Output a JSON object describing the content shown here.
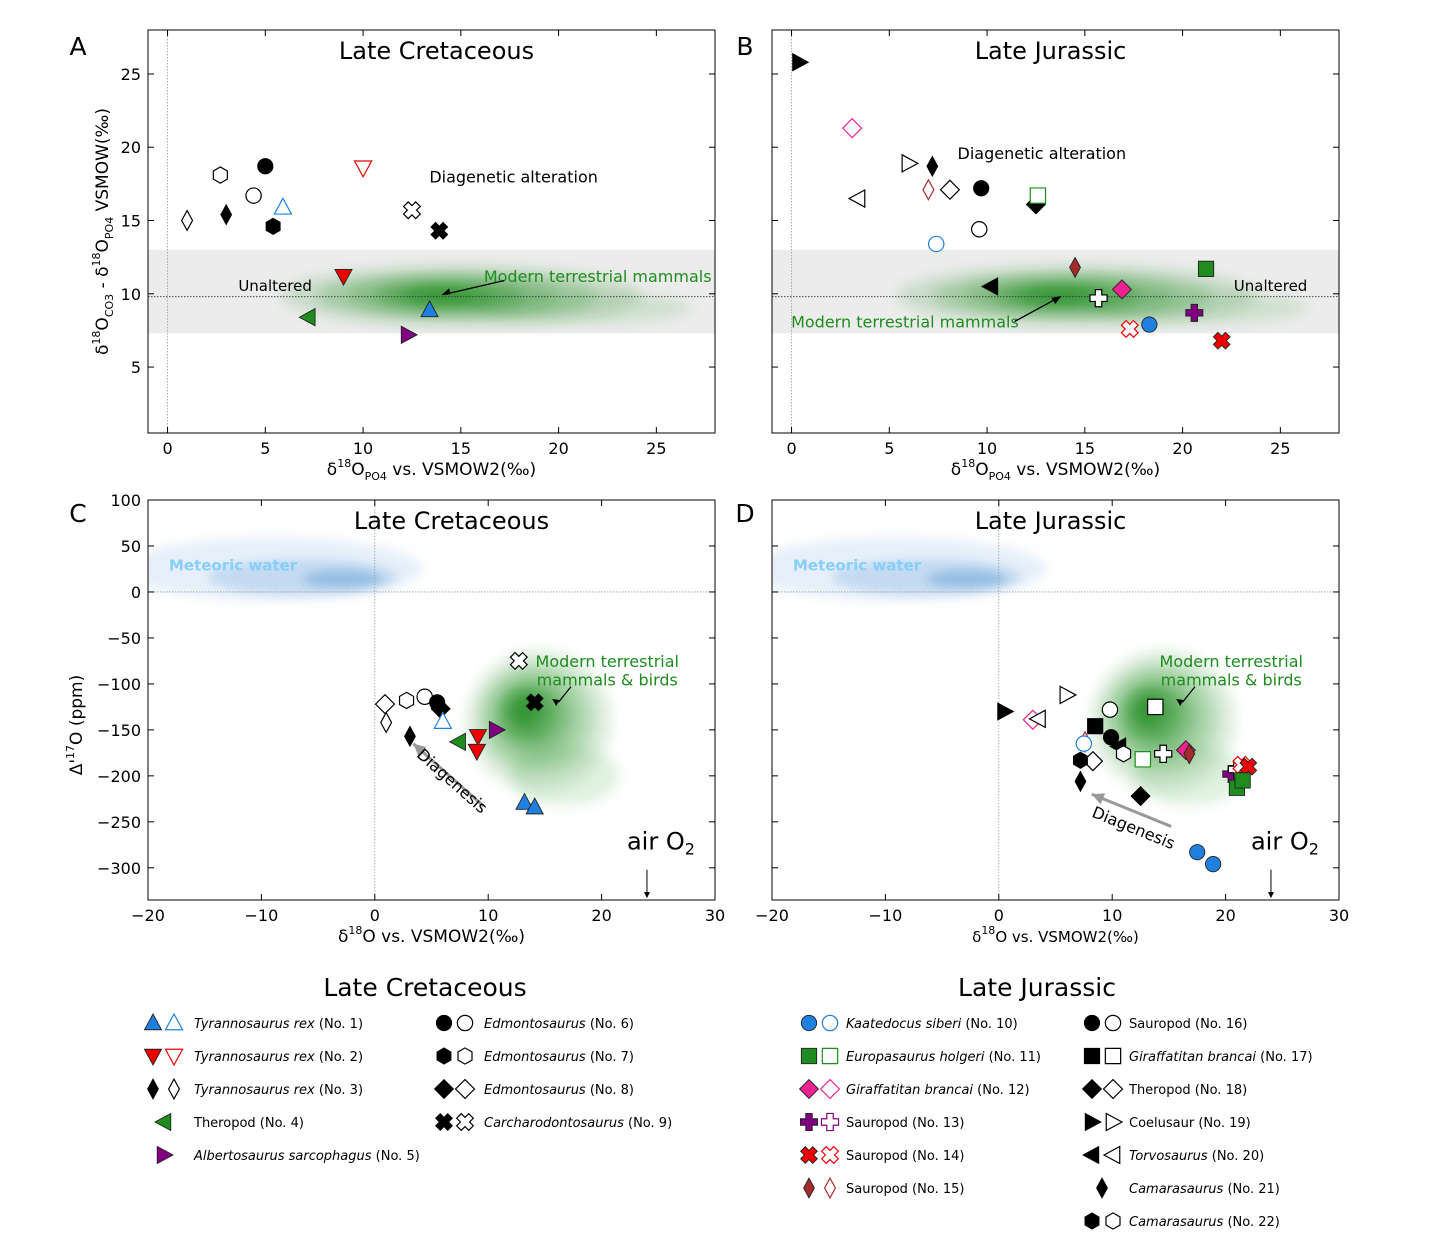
{
  "colors": {
    "green": "#1e8c1e",
    "blue": "#2080e0",
    "red": "#ee0000",
    "purple": "#800080",
    "darkred": "#a52a2a",
    "pink": "#ee2290",
    "black": "#000000",
    "meteoric": "#87cefa",
    "band": "#ececec"
  },
  "chart_data": [
    {
      "panel": "A",
      "type": "scatter",
      "title": "Late Cretaceous",
      "xlabel": {
        "pre": "δ",
        "sup": "18",
        "main": "O",
        "sub": "PO4",
        "post": " vs. VSMOW2(‰)"
      },
      "ylabel": {
        "a": "δ",
        "a_sup": "18",
        "b": "O",
        "b_sub": "CO3",
        "c": " - δ",
        "c_sup": "18",
        "d": "O",
        "d_sub": "PO4",
        "e": " VSMOW(‰)"
      },
      "xlim": [
        -1,
        28
      ],
      "ylim": [
        0.5,
        28
      ],
      "xticks": [
        0,
        5,
        10,
        15,
        20,
        25
      ],
      "yticks": [
        5,
        10,
        15,
        20,
        25
      ],
      "band": [
        7.3,
        13.0
      ],
      "hline": 9.8,
      "vline": 0,
      "texts": {
        "alteration": "Diagenetic alteration",
        "unaltered": "Unaltered",
        "modern": "Modern terrestrial mammals"
      },
      "points": [
        {
          "x": 5.0,
          "y": 18.7,
          "m": "circle",
          "c": "black",
          "f": true
        },
        {
          "x": 4.4,
          "y": 16.7,
          "m": "circle",
          "c": "black",
          "f": false
        },
        {
          "x": 2.7,
          "y": 18.1,
          "m": "hexagon",
          "c": "black",
          "f": false
        },
        {
          "x": 5.4,
          "y": 14.6,
          "m": "hexagon",
          "c": "black",
          "f": true
        },
        {
          "x": 1.0,
          "y": 15.0,
          "m": "thin_diamond",
          "c": "black",
          "f": false
        },
        {
          "x": 3.0,
          "y": 15.4,
          "m": "thin_diamond",
          "c": "black",
          "f": true
        },
        {
          "x": 5.9,
          "y": 15.9,
          "m": "tri_up",
          "c": "blue",
          "f": false
        },
        {
          "x": 10.0,
          "y": 18.6,
          "m": "tri_down",
          "c": "red",
          "f": false
        },
        {
          "x": 12.5,
          "y": 15.7,
          "m": "cross",
          "c": "black",
          "f": false
        },
        {
          "x": 13.9,
          "y": 14.3,
          "m": "cross",
          "c": "black",
          "f": true
        },
        {
          "x": 9.0,
          "y": 11.2,
          "m": "tri_down",
          "c": "red",
          "f": true
        },
        {
          "x": 7.2,
          "y": 8.4,
          "m": "tri_left",
          "c": "green",
          "f": true
        },
        {
          "x": 13.4,
          "y": 8.9,
          "m": "tri_up",
          "c": "blue",
          "f": true
        },
        {
          "x": 12.3,
          "y": 7.2,
          "m": "tri_right",
          "c": "purple",
          "f": true
        }
      ]
    },
    {
      "panel": "B",
      "type": "scatter",
      "title": "Late Jurassic",
      "xlabel": {
        "pre": "δ",
        "sup": "18",
        "main": "O",
        "sub": "PO4",
        "post": " vs. VSMOW2(‰)"
      },
      "xlim": [
        -1,
        28
      ],
      "ylim": [
        0.5,
        28
      ],
      "xticks": [
        0,
        5,
        10,
        15,
        20,
        25
      ],
      "yticks": [
        5,
        10,
        15,
        20,
        25
      ],
      "band": [
        7.3,
        13.0
      ],
      "hline": 9.8,
      "vline": 0,
      "texts": {
        "alteration": "Diagenetic alteration",
        "unaltered": "Unaltered",
        "modern": "Modern terrestrial mammals"
      },
      "points": [
        {
          "x": 0.4,
          "y": 25.8,
          "m": "tri_right",
          "c": "black",
          "f": true
        },
        {
          "x": 3.1,
          "y": 21.3,
          "m": "diamond",
          "c": "pink",
          "f": false
        },
        {
          "x": 6.0,
          "y": 18.9,
          "m": "tri_right",
          "c": "black",
          "f": false
        },
        {
          "x": 7.2,
          "y": 18.7,
          "m": "thin_diamond",
          "c": "black",
          "f": true
        },
        {
          "x": 3.4,
          "y": 16.5,
          "m": "tri_left",
          "c": "black",
          "f": false
        },
        {
          "x": 7.0,
          "y": 17.1,
          "m": "thin_diamond",
          "c": "darkred",
          "f": false
        },
        {
          "x": 8.1,
          "y": 17.1,
          "m": "diamond",
          "c": "black",
          "f": false
        },
        {
          "x": 9.7,
          "y": 17.2,
          "m": "circle",
          "c": "black",
          "f": true
        },
        {
          "x": 12.5,
          "y": 16.1,
          "m": "diamond",
          "c": "black",
          "f": true
        },
        {
          "x": 12.6,
          "y": 16.7,
          "m": "square",
          "c": "green",
          "f": false
        },
        {
          "x": 9.6,
          "y": 14.4,
          "m": "circle",
          "c": "black",
          "f": false
        },
        {
          "x": 7.4,
          "y": 13.4,
          "m": "circle",
          "c": "blue",
          "f": false
        },
        {
          "x": 21.2,
          "y": 11.7,
          "m": "square",
          "c": "green",
          "f": true
        },
        {
          "x": 14.5,
          "y": 11.8,
          "m": "thin_diamond",
          "c": "darkred",
          "f": true
        },
        {
          "x": 10.2,
          "y": 10.5,
          "m": "tri_left",
          "c": "black",
          "f": true
        },
        {
          "x": 16.9,
          "y": 10.3,
          "m": "diamond",
          "c": "pink",
          "f": true
        },
        {
          "x": 15.7,
          "y": 9.7,
          "m": "plus",
          "c": "black",
          "f": false
        },
        {
          "x": 20.6,
          "y": 8.7,
          "m": "plus",
          "c": "purple",
          "f": true
        },
        {
          "x": 17.3,
          "y": 7.6,
          "m": "cross",
          "c": "red",
          "f": false
        },
        {
          "x": 18.3,
          "y": 7.9,
          "m": "circle",
          "c": "blue",
          "f": true
        },
        {
          "x": 22.0,
          "y": 6.8,
          "m": "cross",
          "c": "red",
          "f": true
        }
      ]
    },
    {
      "panel": "C",
      "type": "scatter",
      "title": "Late Cretaceous",
      "xlabel": {
        "pre": "δ",
        "sup": "18",
        "main": "O",
        "sub": "",
        "post": " vs. VSMOW2(‰)"
      },
      "ylabel": {
        "pre": "Δ'",
        "sup": "17",
        "post": "O (ppm)"
      },
      "xlim": [
        -20,
        30
      ],
      "ylim": [
        -335,
        100
      ],
      "xticks": [
        -20,
        -10,
        0,
        10,
        20,
        30
      ],
      "yticks": [
        100,
        50,
        0,
        -50,
        -100,
        -150,
        -200,
        -250,
        -300
      ],
      "hline": 0,
      "vline": 0,
      "texts": {
        "meteoric": "Meteoric water",
        "modern1": "Modern terrestrial",
        "modern2": "mammals & birds",
        "diagenesis": "Diagenesis",
        "air": "air O",
        "air_sub": "2"
      },
      "points": [
        {
          "x": 12.7,
          "y": -75,
          "m": "cross",
          "c": "black",
          "f": false
        },
        {
          "x": 14.1,
          "y": -120,
          "m": "cross",
          "c": "black",
          "f": true
        },
        {
          "x": 0.9,
          "y": -122,
          "m": "diamond",
          "c": "black",
          "f": false
        },
        {
          "x": 2.8,
          "y": -118,
          "m": "hexagon",
          "c": "black",
          "f": false
        },
        {
          "x": 4.4,
          "y": -114,
          "m": "circle",
          "c": "black",
          "f": false
        },
        {
          "x": 5.5,
          "y": -120,
          "m": "circle",
          "c": "black",
          "f": true
        },
        {
          "x": 5.8,
          "y": -127,
          "m": "diamond",
          "c": "black",
          "f": true
        },
        {
          "x": 1.0,
          "y": -142,
          "m": "thin_diamond",
          "c": "black",
          "f": false
        },
        {
          "x": 6.0,
          "y": -141,
          "m": "tri_up",
          "c": "blue",
          "f": false
        },
        {
          "x": 3.1,
          "y": -157,
          "m": "thin_diamond",
          "c": "black",
          "f": true
        },
        {
          "x": 7.4,
          "y": -163,
          "m": "tri_left",
          "c": "green",
          "f": true
        },
        {
          "x": 9.1,
          "y": -157,
          "m": "tri_down",
          "c": "red",
          "f": true
        },
        {
          "x": 9.0,
          "y": -173,
          "m": "tri_down",
          "c": "red",
          "f": true
        },
        {
          "x": 10.7,
          "y": -150,
          "m": "tri_right",
          "c": "purple",
          "f": true
        },
        {
          "x": 13.2,
          "y": -229,
          "m": "tri_up",
          "c": "blue",
          "f": true
        },
        {
          "x": 14.1,
          "y": -234,
          "m": "tri_up",
          "c": "blue",
          "f": true
        }
      ]
    },
    {
      "panel": "D",
      "type": "scatter",
      "title": "Late Jurassic",
      "xlabel": {
        "pre": "δ",
        "sup": "18",
        "main": "O",
        "sub": "",
        "post": " vs. VSMOW2(‰)"
      },
      "xlim": [
        -20,
        30
      ],
      "ylim": [
        -335,
        100
      ],
      "xticks": [
        -20,
        -10,
        0,
        10,
        20,
        30
      ],
      "yticks": [
        100,
        50,
        0,
        -50,
        -100,
        -150,
        -200,
        -250,
        -300
      ],
      "hline": 0,
      "vline": 0,
      "texts": {
        "meteoric": "Meteoric water",
        "modern1": "Modern terrestrial",
        "modern2": "mammals & birds",
        "diagenesis": "Diagenesis",
        "air": "air O",
        "air_sub": "2"
      },
      "points": [
        {
          "x": 0.5,
          "y": -130,
          "m": "tri_right",
          "c": "black",
          "f": true
        },
        {
          "x": 3.0,
          "y": -139,
          "m": "diamond",
          "c": "pink",
          "f": false
        },
        {
          "x": 3.5,
          "y": -138,
          "m": "tri_left",
          "c": "black",
          "f": false
        },
        {
          "x": 6.0,
          "y": -112,
          "m": "tri_right",
          "c": "black",
          "f": false
        },
        {
          "x": 8.5,
          "y": -146,
          "m": "square",
          "c": "black",
          "f": true
        },
        {
          "x": 9.8,
          "y": -128,
          "m": "circle",
          "c": "black",
          "f": false
        },
        {
          "x": 13.8,
          "y": -125,
          "m": "square",
          "c": "black",
          "f": false
        },
        {
          "x": 7.6,
          "y": -163,
          "m": "thin_diamond",
          "c": "darkred",
          "f": false
        },
        {
          "x": 7.5,
          "y": -165,
          "m": "circle",
          "c": "blue",
          "f": false
        },
        {
          "x": 9.9,
          "y": -158,
          "m": "circle",
          "c": "black",
          "f": true
        },
        {
          "x": 10.6,
          "y": -168,
          "m": "tri_left",
          "c": "black",
          "f": true
        },
        {
          "x": 11.0,
          "y": -176,
          "m": "hexagon",
          "c": "black",
          "f": false
        },
        {
          "x": 12.7,
          "y": -182,
          "m": "square",
          "c": "green",
          "f": false
        },
        {
          "x": 14.5,
          "y": -176,
          "m": "plus",
          "c": "black",
          "f": false
        },
        {
          "x": 16.5,
          "y": -172,
          "m": "diamond",
          "c": "pink",
          "f": true
        },
        {
          "x": 16.8,
          "y": -176,
          "m": "thin_diamond",
          "c": "darkred",
          "f": true
        },
        {
          "x": 8.3,
          "y": -184,
          "m": "diamond",
          "c": "black",
          "f": false
        },
        {
          "x": 7.2,
          "y": -183,
          "m": "hexagon",
          "c": "black",
          "f": true
        },
        {
          "x": 7.2,
          "y": -206,
          "m": "thin_diamond",
          "c": "black",
          "f": true
        },
        {
          "x": 12.5,
          "y": -222,
          "m": "diamond",
          "c": "black",
          "f": true
        },
        {
          "x": 20.5,
          "y": -198,
          "m": "plus",
          "c": "purple",
          "f": true
        },
        {
          "x": 21.0,
          "y": -193,
          "m": "plus",
          "c": "black",
          "f": false
        },
        {
          "x": 21.4,
          "y": -188,
          "m": "cross",
          "c": "red",
          "f": false
        },
        {
          "x": 22.0,
          "y": -190,
          "m": "cross",
          "c": "red",
          "f": true
        },
        {
          "x": 21.0,
          "y": -213,
          "m": "square",
          "c": "green",
          "f": true
        },
        {
          "x": 21.5,
          "y": -205,
          "m": "square",
          "c": "green",
          "f": true
        },
        {
          "x": 17.5,
          "y": -283,
          "m": "circle",
          "c": "blue",
          "f": true
        },
        {
          "x": 18.9,
          "y": -296,
          "m": "circle",
          "c": "blue",
          "f": true
        }
      ]
    }
  ],
  "legend": {
    "left_title": "Late Cretaceous",
    "right_title": "Late Jurassic",
    "left": [
      {
        "m": "tri_up",
        "c": "blue",
        "italic": "Tyrannosaurus rex",
        "rest": " (No. 1)",
        "pair": true
      },
      {
        "m": "tri_down",
        "c": "red",
        "italic": "Tyrannosaurus rex",
        "rest": " (No. 2)",
        "pair": true
      },
      {
        "m": "thin_diamond",
        "c": "black",
        "italic": "Tyrannosaurus rex",
        "rest": " (No. 3)",
        "pair": true
      },
      {
        "m": "tri_left",
        "c": "green",
        "italic": "",
        "rest": "Theropod (No. 4)",
        "pair": false
      },
      {
        "m": "tri_right",
        "c": "purple",
        "italic": "Albertosaurus sarcophagus",
        "rest": " (No. 5)",
        "pair": false
      },
      {
        "m": "circle",
        "c": "black",
        "italic": "Edmontosaurus",
        "rest": " (No. 6)",
        "pair": true
      },
      {
        "m": "hexagon",
        "c": "black",
        "italic": "Edmontosaurus",
        "rest": " (No. 7)",
        "pair": true
      },
      {
        "m": "diamond",
        "c": "black",
        "italic": "Edmontosaurus",
        "rest": " (No. 8)",
        "pair": true
      },
      {
        "m": "cross",
        "c": "black",
        "italic": "Carcharodontosaurus",
        "rest": " (No. 9)",
        "pair": true
      }
    ],
    "right": [
      {
        "m": "circle",
        "c": "blue",
        "italic": "Kaatedocus siberi",
        "rest": " (No. 10)",
        "pair": true
      },
      {
        "m": "square",
        "c": "green",
        "italic": "Europasaurus holgeri",
        "rest": " (No. 11)",
        "pair": true
      },
      {
        "m": "diamond",
        "c": "pink",
        "italic": "Giraffatitan brancai",
        "rest": " (No. 12)",
        "pair": true
      },
      {
        "m": "plus",
        "c": "purple",
        "italic": "",
        "rest": "Sauropod (No. 13)",
        "pair": true
      },
      {
        "m": "cross",
        "c": "red",
        "italic": "",
        "rest": "Sauropod  (No. 14)",
        "pair": true
      },
      {
        "m": "thin_diamond",
        "c": "darkred",
        "italic": "",
        "rest": "Sauropod (No. 15)",
        "pair": true
      },
      {
        "m": "circle",
        "c": "black",
        "italic": "",
        "rest": "Sauropod (No. 16)",
        "pair": true
      },
      {
        "m": "square",
        "c": "black",
        "italic": "Giraffatitan brancai",
        "rest": " (No. 17)",
        "pair": true
      },
      {
        "m": "diamond",
        "c": "black",
        "italic": "",
        "rest": "Theropod (No. 18)",
        "pair": true
      },
      {
        "m": "tri_right",
        "c": "black",
        "italic": "",
        "rest": "Coelusaur (No. 19)",
        "pair": true
      },
      {
        "m": "tri_left",
        "c": "black",
        "italic": "Torvosaurus",
        "rest": " (No. 20)",
        "pair": true
      },
      {
        "m": "thin_diamond",
        "c": "black",
        "italic": "Camarasaurus",
        "rest": " (No. 21)",
        "pair": false
      },
      {
        "m": "hexagon",
        "c": "black",
        "italic": "Camarasaurus",
        "rest": " (No. 22)",
        "pair": true
      }
    ]
  }
}
